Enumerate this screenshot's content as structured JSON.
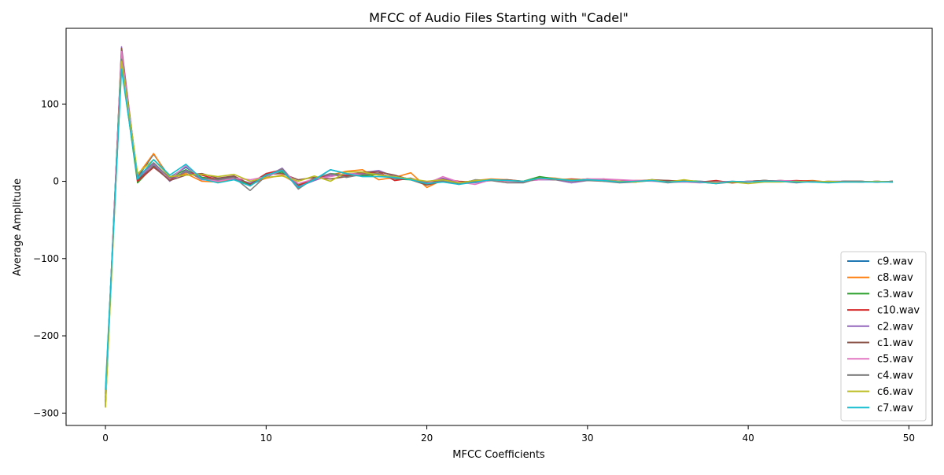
{
  "chart_data": {
    "type": "line",
    "title": "MFCC of Audio Files Starting with \"Cadel\"",
    "xlabel": "MFCC Coefficients",
    "ylabel": "Average Amplitude",
    "xlim": [
      -2.45,
      51.45
    ],
    "ylim": [
      -316,
      198
    ],
    "xticks": [
      0,
      10,
      20,
      30,
      40,
      50
    ],
    "yticks": [
      -300,
      -200,
      -100,
      0,
      100
    ],
    "grid": false,
    "legend_position": "lower-right",
    "x": [
      0,
      1,
      2,
      3,
      4,
      5,
      6,
      7,
      8,
      9,
      10,
      11,
      12,
      13,
      14,
      15,
      16,
      17,
      18,
      19,
      20,
      21,
      22,
      23,
      24,
      25,
      26,
      27,
      28,
      29,
      30,
      31,
      32,
      33,
      34,
      35,
      36,
      37,
      38,
      39,
      40,
      41,
      42,
      43,
      44,
      45,
      46,
      47,
      48,
      49
    ],
    "series": [
      {
        "name": "c9.wav",
        "color": "#1f77b4",
        "values": [
          -280,
          160,
          5,
          35,
          5,
          18,
          5,
          3,
          6,
          -5,
          5,
          15,
          -8,
          2,
          15,
          10,
          8,
          10,
          5,
          3,
          -3,
          2,
          -3,
          0,
          2,
          0,
          -1,
          4,
          3,
          0,
          2,
          1,
          -1,
          0,
          1,
          -1,
          0,
          -1,
          -2,
          -1,
          0,
          1,
          0,
          -1,
          0,
          -1,
          0,
          -1,
          0,
          -1
        ]
      },
      {
        "name": "c8.wav",
        "color": "#ff7f0e",
        "values": [
          -290,
          165,
          8,
          36,
          3,
          10,
          0,
          -1,
          3,
          -3,
          4,
          8,
          -4,
          3,
          8,
          13,
          15,
          2,
          5,
          11,
          -8,
          2,
          -2,
          1,
          3,
          2,
          0,
          5,
          4,
          1,
          2,
          1,
          0,
          0,
          1,
          0,
          1,
          -1,
          0,
          -2,
          -1,
          0,
          1,
          0,
          1,
          -1,
          0,
          -1,
          0,
          -1
        ]
      },
      {
        "name": "c3.wav",
        "color": "#2ca02c",
        "values": [
          -275,
          150,
          -2,
          20,
          5,
          15,
          5,
          2,
          4,
          -6,
          8,
          12,
          -5,
          2,
          10,
          8,
          7,
          9,
          3,
          2,
          -4,
          1,
          -2,
          1,
          2,
          1,
          0,
          6,
          3,
          1,
          3,
          2,
          -1,
          -1,
          2,
          0,
          1,
          0,
          -1,
          -2,
          0,
          1,
          0,
          -1,
          0,
          -1,
          0,
          0,
          -1,
          0
        ]
      },
      {
        "name": "c10.wav",
        "color": "#d62728",
        "values": [
          -285,
          170,
          0,
          18,
          2,
          12,
          8,
          2,
          5,
          -3,
          10,
          15,
          -6,
          4,
          8,
          7,
          10,
          12,
          1,
          4,
          -2,
          3,
          0,
          -1,
          1,
          0,
          0,
          3,
          2,
          3,
          2,
          2,
          0,
          1,
          1,
          1,
          0,
          -1,
          1,
          -2,
          -1,
          1,
          0,
          1,
          0,
          -1,
          0,
          0,
          -1,
          0
        ]
      },
      {
        "name": "c2.wav",
        "color": "#9467bd",
        "values": [
          -288,
          174,
          3,
          22,
          0,
          14,
          2,
          1,
          3,
          -2,
          6,
          17,
          -7,
          1,
          8,
          9,
          11,
          14,
          6,
          3,
          -1,
          4,
          -1,
          -2,
          2,
          1,
          0,
          2,
          2,
          -2,
          1,
          3,
          0,
          0,
          1,
          -1,
          -1,
          0,
          -1,
          0,
          -1,
          0,
          1,
          0,
          -1,
          0,
          0,
          -1,
          0,
          -1
        ]
      },
      {
        "name": "c1.wav",
        "color": "#8c564b",
        "values": [
          -292,
          172,
          2,
          19,
          1,
          8,
          10,
          4,
          7,
          -4,
          9,
          10,
          2,
          5,
          3,
          6,
          12,
          12,
          8,
          2,
          -5,
          0,
          -1,
          0,
          1,
          2,
          0,
          3,
          2,
          1,
          3,
          0,
          -1,
          0,
          2,
          1,
          0,
          -1,
          0,
          -1,
          0,
          1,
          0,
          -1,
          0,
          -1,
          0,
          0,
          -1,
          0
        ]
      },
      {
        "name": "c5.wav",
        "color": "#e377c2",
        "values": [
          -283,
          168,
          4,
          24,
          3,
          20,
          3,
          0,
          4,
          2,
          6,
          14,
          -3,
          3,
          6,
          10,
          9,
          10,
          4,
          3,
          -3,
          6,
          -1,
          -4,
          2,
          0,
          0,
          2,
          3,
          1,
          3,
          3,
          2,
          1,
          0,
          -1,
          -1,
          -2,
          -1,
          -1,
          0,
          0,
          1,
          0,
          -1,
          0,
          -1,
          -1,
          0,
          -1
        ]
      },
      {
        "name": "c4.wav",
        "color": "#7f7f7f",
        "values": [
          -286,
          158,
          6,
          24,
          4,
          12,
          4,
          2,
          5,
          -12,
          7,
          16,
          -10,
          4,
          10,
          5,
          9,
          10,
          3,
          4,
          -3,
          1,
          -4,
          2,
          1,
          -2,
          -2,
          4,
          2,
          0,
          1,
          0,
          -2,
          -1,
          1,
          -2,
          0,
          -1,
          -3,
          -1,
          -1,
          1,
          0,
          -2,
          0,
          -1,
          0,
          0,
          -1,
          0
        ]
      },
      {
        "name": "c6.wav",
        "color": "#bcbd22",
        "values": [
          -293,
          155,
          10,
          28,
          6,
          8,
          9,
          6,
          9,
          0,
          5,
          7,
          0,
          7,
          0,
          12,
          12,
          8,
          6,
          3,
          0,
          2,
          -2,
          1,
          2,
          1,
          0,
          4,
          3,
          2,
          2,
          1,
          0,
          -1,
          2,
          -1,
          2,
          -1,
          -2,
          -1,
          -3,
          -1,
          -1,
          0,
          -1,
          0,
          -1,
          -1,
          0,
          -1
        ]
      },
      {
        "name": "c7.wav",
        "color": "#17becf",
        "values": [
          -270,
          145,
          3,
          28,
          8,
          22,
          3,
          -2,
          2,
          -6,
          8,
          14,
          -8,
          2,
          15,
          10,
          6,
          6,
          5,
          2,
          -3,
          -1,
          -4,
          -1,
          2,
          1,
          0,
          4,
          3,
          1,
          2,
          1,
          -1,
          0,
          1,
          -1,
          0,
          -1,
          -3,
          0,
          -1,
          0,
          0,
          -1,
          -1,
          -2,
          -1,
          -1,
          -1,
          -1
        ]
      }
    ]
  }
}
